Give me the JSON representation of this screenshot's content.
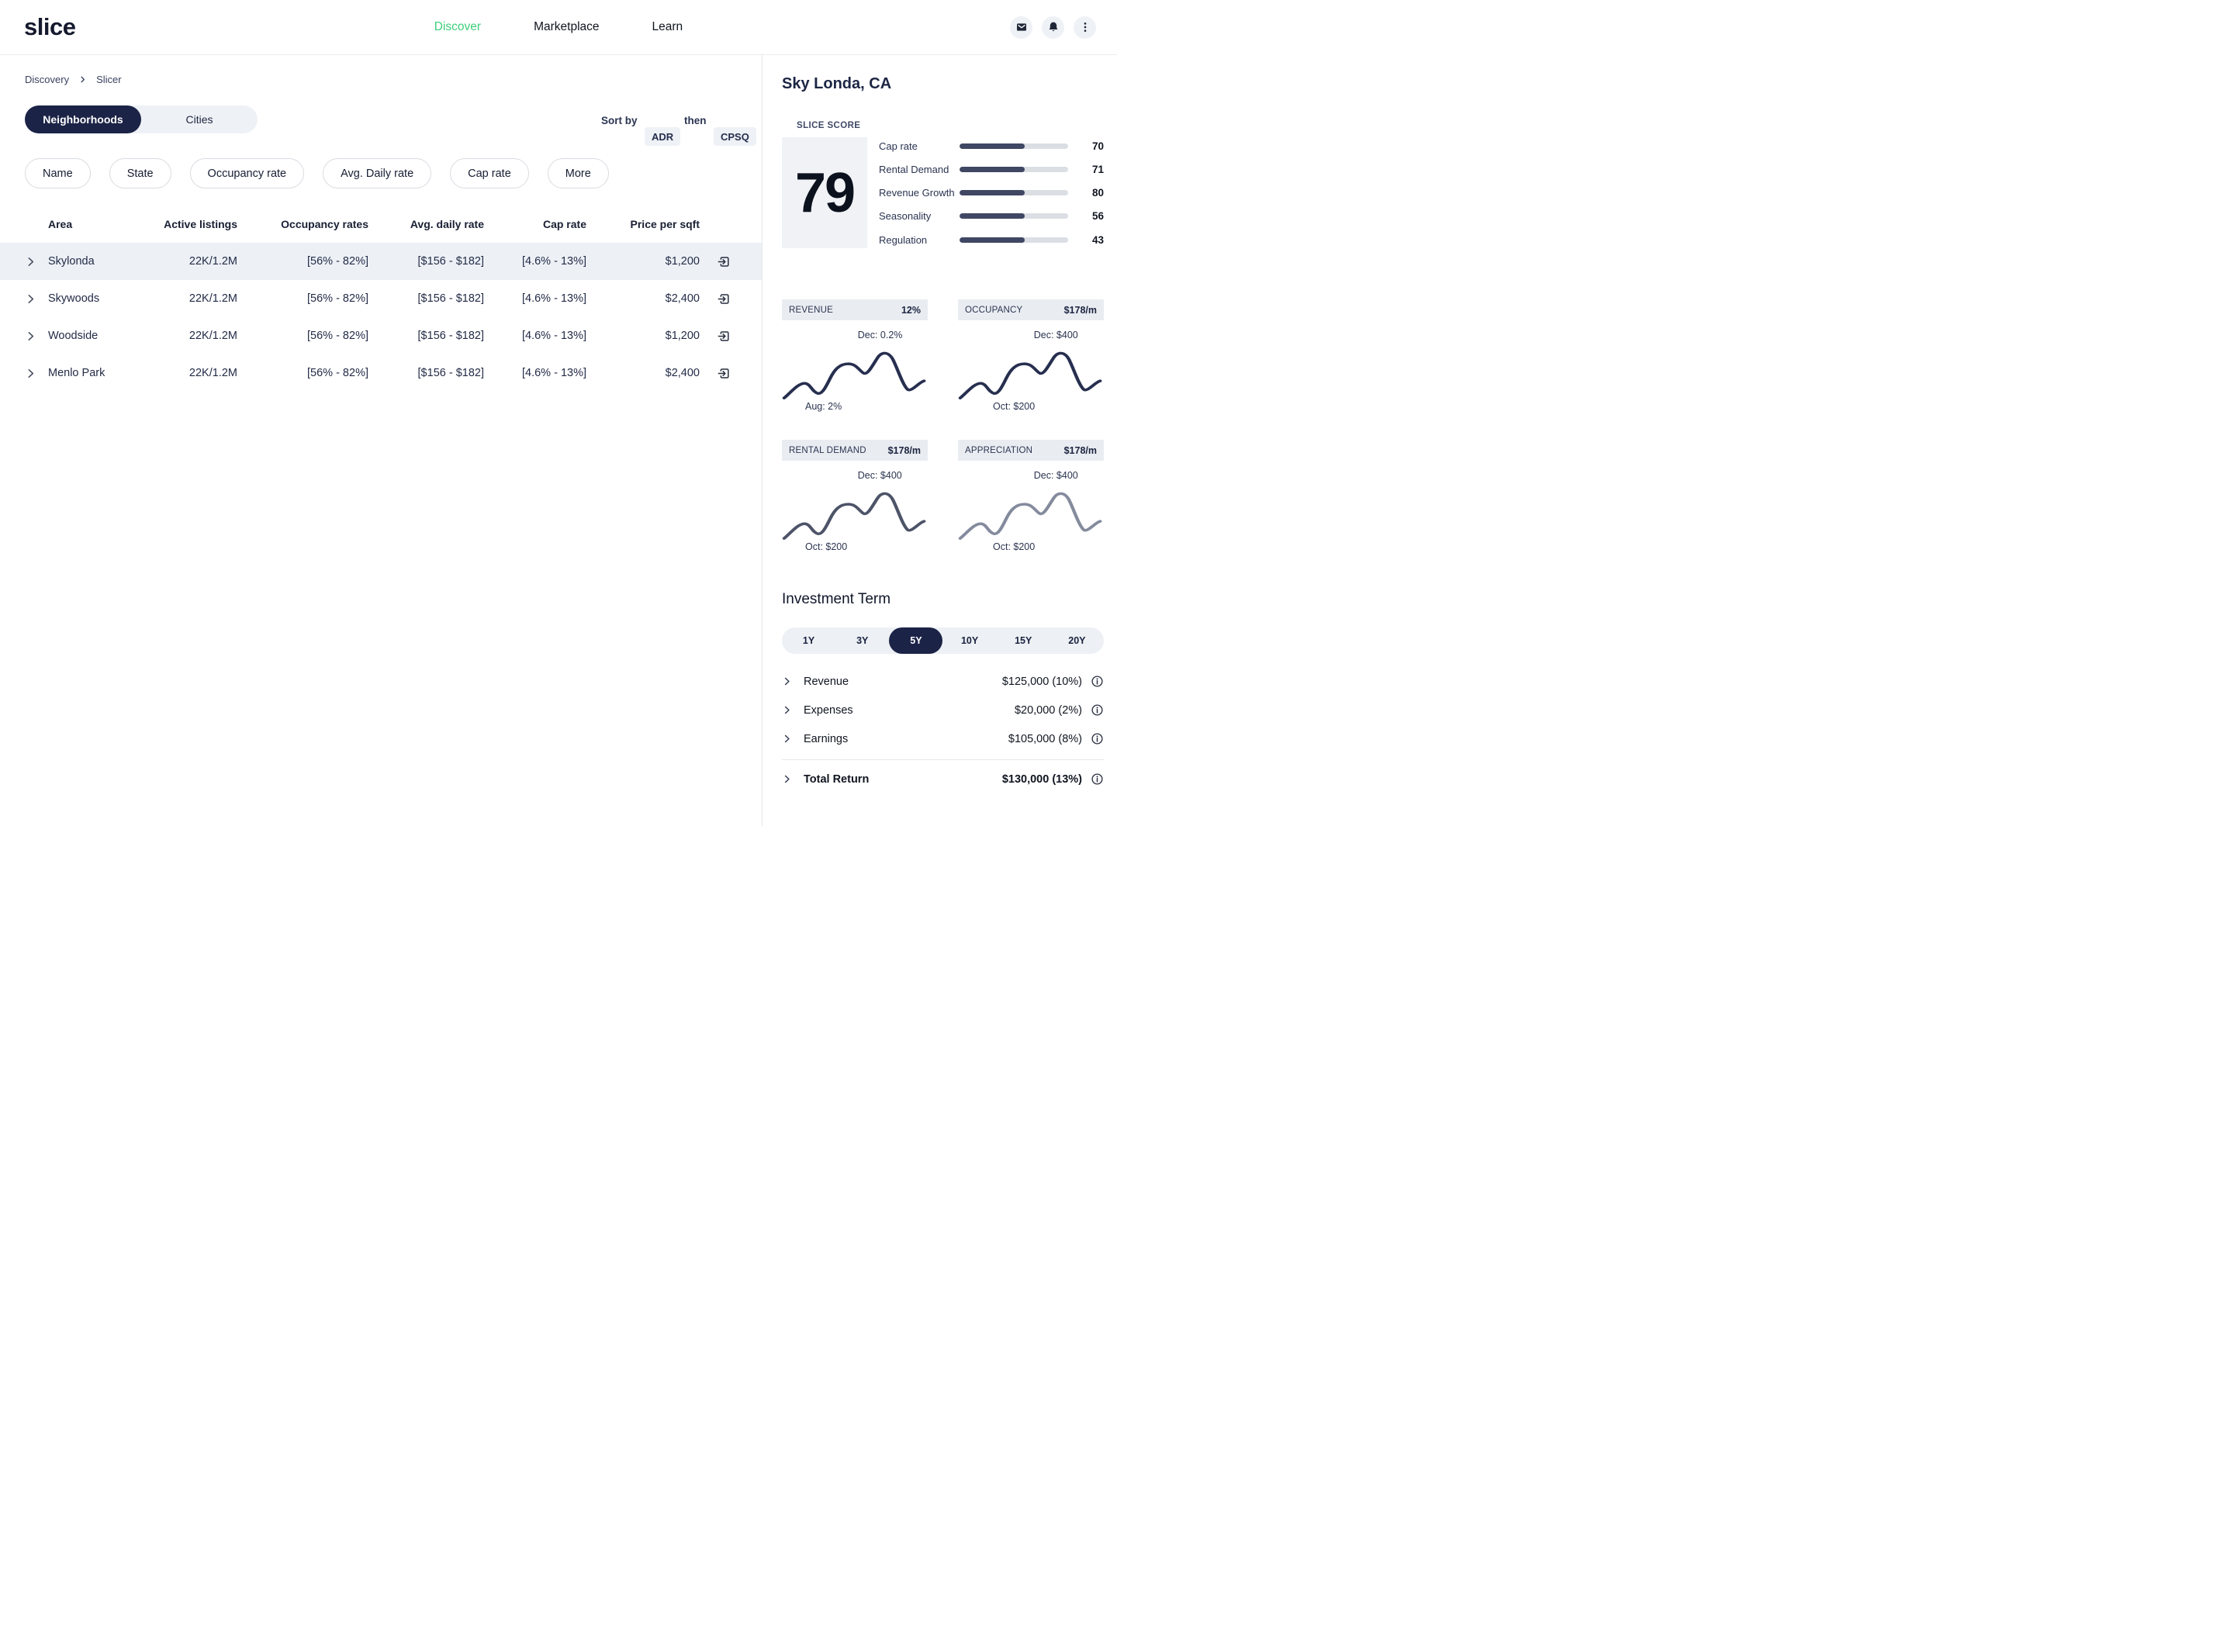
{
  "colors": {
    "accent": "#3ecf7a",
    "navy": "#1b2347"
  },
  "brand": {
    "logo": "slice"
  },
  "nav": {
    "items": [
      {
        "label": "Discover",
        "active": true
      },
      {
        "label": "Marketplace",
        "active": false
      },
      {
        "label": "Learn",
        "active": false
      }
    ]
  },
  "header_icons": [
    "mail-icon",
    "bell-icon",
    "kebab-menu-icon"
  ],
  "breadcrumb": {
    "items": [
      "Discovery",
      "Slicer"
    ]
  },
  "view_toggle": {
    "options": [
      {
        "label": "Neighborhoods",
        "active": true
      },
      {
        "label": "Cities",
        "active": false
      }
    ]
  },
  "sort": {
    "label": "Sort by",
    "primary": "ADR",
    "then_label": "then",
    "secondary": "CPSQ"
  },
  "filters": [
    "Name",
    "State",
    "Occupancy rate",
    "Avg. Daily rate",
    "Cap rate",
    "More"
  ],
  "table": {
    "columns": [
      "Area",
      "Active listings",
      "Occupancy rates",
      "Avg. daily rate",
      "Cap rate",
      "Price per sqft"
    ],
    "rows": [
      {
        "area": "Skylonda",
        "active_listings": "22K/1.2M",
        "occupancy": "[56% - 82%]",
        "adr": "[$156 - $182]",
        "cap_rate": "[4.6% - 13%]",
        "price_per_sqft": "$1,200",
        "highlighted": true
      },
      {
        "area": "Skywoods",
        "active_listings": "22K/1.2M",
        "occupancy": "[56% - 82%]",
        "adr": "[$156 - $182]",
        "cap_rate": "[4.6% - 13%]",
        "price_per_sqft": "$2,400",
        "highlighted": false
      },
      {
        "area": "Woodside",
        "active_listings": "22K/1.2M",
        "occupancy": "[56% - 82%]",
        "adr": "[$156 - $182]",
        "cap_rate": "[4.6% - 13%]",
        "price_per_sqft": "$1,200",
        "highlighted": false
      },
      {
        "area": "Menlo Park",
        "active_listings": "22K/1.2M",
        "occupancy": "[56% - 82%]",
        "adr": "[$156 - $182]",
        "cap_rate": "[4.6% - 13%]",
        "price_per_sqft": "$2,400",
        "highlighted": false
      }
    ]
  },
  "detail": {
    "title": "Sky Londa, CA",
    "slice_score": {
      "label": "SLICE SCORE",
      "score": "79",
      "metrics": [
        {
          "label": "Cap rate",
          "value": "70",
          "bar_pct": 60
        },
        {
          "label": "Rental Demand",
          "value": "71",
          "bar_pct": 60
        },
        {
          "label": "Revenue Growth",
          "value": "80",
          "bar_pct": 60
        },
        {
          "label": "Seasonality",
          "value": "56",
          "bar_pct": 60
        },
        {
          "label": "Regulation",
          "value": "43",
          "bar_pct": 60
        }
      ]
    },
    "metric_cards": [
      {
        "label": "REVENUE",
        "value": "12%",
        "top_annotation": "Dec: 0.2%",
        "bottom_annotation": "Aug: 2%",
        "line_color": "#272f4f"
      },
      {
        "label": "OCCUPANCY",
        "value": "$178/m",
        "top_annotation": "Dec: $400",
        "bottom_annotation": "Oct: $200",
        "line_color": "#272f4f"
      },
      {
        "label": "RENTAL DEMAND",
        "value": "$178/m",
        "top_annotation": "Dec: $400",
        "bottom_annotation": "Oct: $200",
        "line_color": "#4d5468"
      },
      {
        "label": "APPRECIATION",
        "value": "$178/m",
        "top_annotation": "Dec: $400",
        "bottom_annotation": "Oct: $200",
        "line_color": "#848b9d"
      }
    ],
    "investment": {
      "title": "Investment Term",
      "terms": [
        {
          "label": "1Y",
          "active": false
        },
        {
          "label": "3Y",
          "active": false
        },
        {
          "label": "5Y",
          "active": true
        },
        {
          "label": "10Y",
          "active": false
        },
        {
          "label": "15Y",
          "active": false
        },
        {
          "label": "20Y",
          "active": false
        }
      ],
      "rows": [
        {
          "label": "Revenue",
          "value": "$125,000 (10%)"
        },
        {
          "label": "Expenses",
          "value": "$20,000 (2%)"
        },
        {
          "label": "Earnings",
          "value": "$105,000 (8%)"
        }
      ],
      "total": {
        "label": "Total Return",
        "value": "$130,000 (13%)"
      }
    }
  }
}
